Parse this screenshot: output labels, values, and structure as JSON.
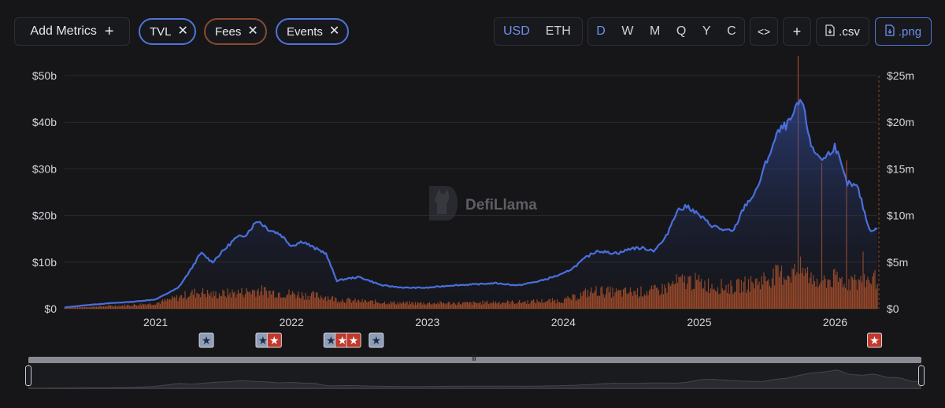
{
  "toolbar": {
    "add_metrics_label": "Add Metrics",
    "add_icon": "plus-icon",
    "metric_pills": [
      {
        "label": "TVL",
        "color": "#4f74d9"
      },
      {
        "label": "Fees",
        "color": "#b0552f"
      },
      {
        "label": "Events",
        "color": "#4f74d9"
      }
    ],
    "currency_options": [
      "USD",
      "ETH"
    ],
    "currency_selected": "USD",
    "period_options": [
      "D",
      "W",
      "M",
      "Q",
      "Y",
      "C"
    ],
    "period_selected": "D",
    "embed_label": "<>",
    "add_label": "+",
    "csv_label": ".csv",
    "png_label": ".png"
  },
  "watermark": "DefiLlama",
  "colors": {
    "tvl": "#4a6fdc",
    "fees": "#b9552a",
    "event_blue": "#8e9db8",
    "event_red": "#c0392b"
  },
  "chart_data": {
    "type": "line",
    "title": "",
    "x": [
      "2020-05",
      "2020-07",
      "2020-09",
      "2020-11",
      "2021-01",
      "2021-03",
      "2021-04",
      "2021-05",
      "2021-06",
      "2021-07",
      "2021-08",
      "2021-09",
      "2021-10",
      "2021-11",
      "2021-12",
      "2022-01",
      "2022-02",
      "2022-03",
      "2022-04",
      "2022-05",
      "2022-06",
      "2022-07",
      "2022-09",
      "2022-11",
      "2023-01",
      "2023-03",
      "2023-05",
      "2023-07",
      "2023-09",
      "2023-11",
      "2024-01",
      "2024-02",
      "2024-03",
      "2024-04",
      "2024-05",
      "2024-06",
      "2024-07",
      "2024-08",
      "2024-09",
      "2024-10",
      "2024-11",
      "2024-12",
      "2025-01",
      "2025-02",
      "2025-03",
      "2025-04",
      "2025-05",
      "2025-06",
      "2025-07",
      "2025-08",
      "2025-09",
      "2025-10",
      "2025-11",
      "2025-12",
      "2026-01",
      "2026-02",
      "2026-03",
      "2026-04"
    ],
    "xlabel": "",
    "x_ticks": [
      "2021",
      "2022",
      "2023",
      "2024",
      "2025",
      "2026"
    ],
    "y_left": {
      "label": "",
      "ticks": [
        "$0",
        "$10b",
        "$20b",
        "$30b",
        "$40b",
        "$50b"
      ],
      "lim": [
        0,
        50
      ]
    },
    "y_right": {
      "label": "",
      "ticks": [
        "$0",
        "$5m",
        "$10m",
        "$15m",
        "$20m",
        "$25m"
      ],
      "lim": [
        0,
        25
      ]
    },
    "series": [
      {
        "name": "TVL",
        "axis": "left",
        "unit": "$b",
        "values": [
          0.3,
          0.8,
          1.2,
          1.5,
          2.0,
          4.5,
          8.0,
          12.0,
          10.0,
          12.5,
          15.0,
          16.0,
          19.0,
          17.0,
          16.0,
          13.5,
          14.5,
          13.0,
          12.0,
          6.0,
          6.5,
          6.8,
          5.0,
          4.5,
          4.5,
          5.0,
          5.2,
          5.5,
          5.0,
          6.0,
          7.5,
          9.0,
          11.0,
          12.5,
          12.0,
          12.0,
          13.0,
          13.0,
          12.5,
          15.0,
          21.0,
          22.0,
          20.0,
          18.0,
          17.0,
          16.5,
          22.0,
          25.0,
          32.0,
          38.0,
          40.0,
          45.0,
          34.0,
          32.0,
          35.0,
          27.0,
          26.0,
          17.0
        ]
      },
      {
        "name": "Fees",
        "axis": "right",
        "unit": "$m",
        "values": [
          0.1,
          0.2,
          0.3,
          0.4,
          0.6,
          1.2,
          1.6,
          1.8,
          1.5,
          1.6,
          1.7,
          1.8,
          2.0,
          1.8,
          1.7,
          1.6,
          1.5,
          1.4,
          1.3,
          1.0,
          0.9,
          0.8,
          0.7,
          0.6,
          0.6,
          0.6,
          0.6,
          0.7,
          0.7,
          0.8,
          0.9,
          1.2,
          1.7,
          1.9,
          1.8,
          1.7,
          1.8,
          1.8,
          1.9,
          2.2,
          2.8,
          3.0,
          2.8,
          2.5,
          2.4,
          2.3,
          2.6,
          2.8,
          3.3,
          3.6,
          3.8,
          4.2,
          3.3,
          3.0,
          3.2,
          3.0,
          2.8,
          3.2
        ]
      }
    ],
    "events": [
      {
        "x": "2021-05",
        "type": "blue"
      },
      {
        "x": "2021-10",
        "type": "blue"
      },
      {
        "x": "2021-11",
        "type": "red"
      },
      {
        "x": "2022-04",
        "type": "blue"
      },
      {
        "x": "2022-05",
        "type": "red"
      },
      {
        "x": "2022-06",
        "type": "red"
      },
      {
        "x": "2022-08",
        "type": "blue"
      },
      {
        "x": "2026-04",
        "type": "red"
      }
    ],
    "grid": true,
    "legend": "none"
  }
}
